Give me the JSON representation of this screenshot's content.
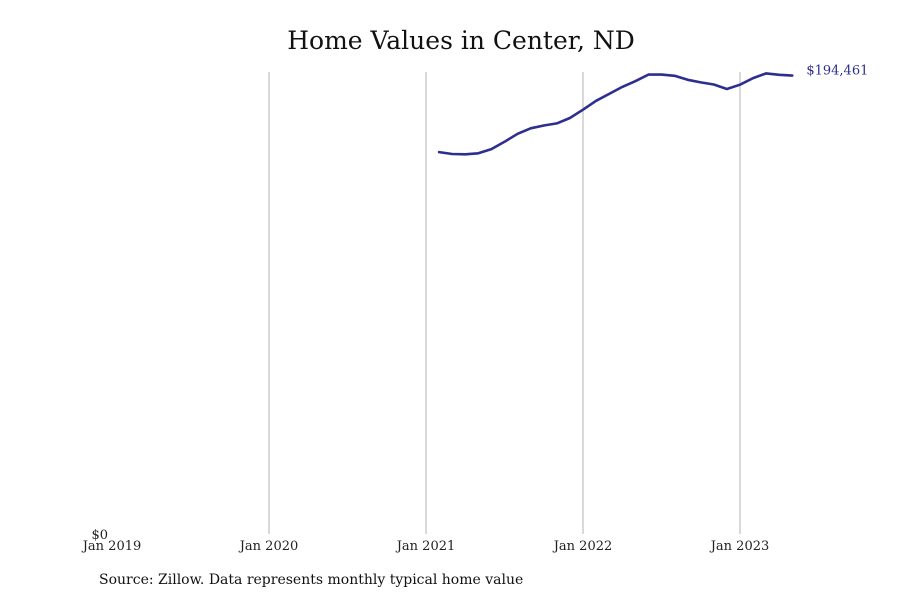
{
  "chart_data": {
    "type": "line",
    "title": "Home Values in Center, ND",
    "source": "Source: Zillow. Data represents monthly typical home value",
    "xlabel": "",
    "ylabel": "",
    "x_ticks": [
      "Jan 2019",
      "Jan 2020",
      "Jan 2021",
      "Jan 2022",
      "Jan 2023"
    ],
    "y_ticks": [
      "$0"
    ],
    "ylim": [
      0,
      196000
    ],
    "grid": "vertical",
    "line_color": "#2e2e8f",
    "end_label": "$194,461",
    "series": [
      {
        "x": [
          "2021-02",
          "2021-03",
          "2021-04",
          "2021-05",
          "2021-06",
          "2021-07",
          "2021-08",
          "2021-09",
          "2021-10",
          "2021-11",
          "2021-12",
          "2022-01",
          "2022-02",
          "2022-03",
          "2022-04",
          "2022-05",
          "2022-06",
          "2022-07",
          "2022-08",
          "2022-09",
          "2022-10",
          "2022-11",
          "2022-12",
          "2023-01",
          "2023-02",
          "2023-03",
          "2023-04",
          "2023-05"
        ],
        "values": [
          162000,
          161200,
          161100,
          161500,
          163300,
          166400,
          169800,
          172100,
          173300,
          174200,
          176500,
          180000,
          183800,
          186700,
          189700,
          192100,
          194900,
          194900,
          194400,
          192700,
          191600,
          190700,
          188800,
          190600,
          193400,
          195400,
          194800,
          194461
        ]
      }
    ]
  }
}
